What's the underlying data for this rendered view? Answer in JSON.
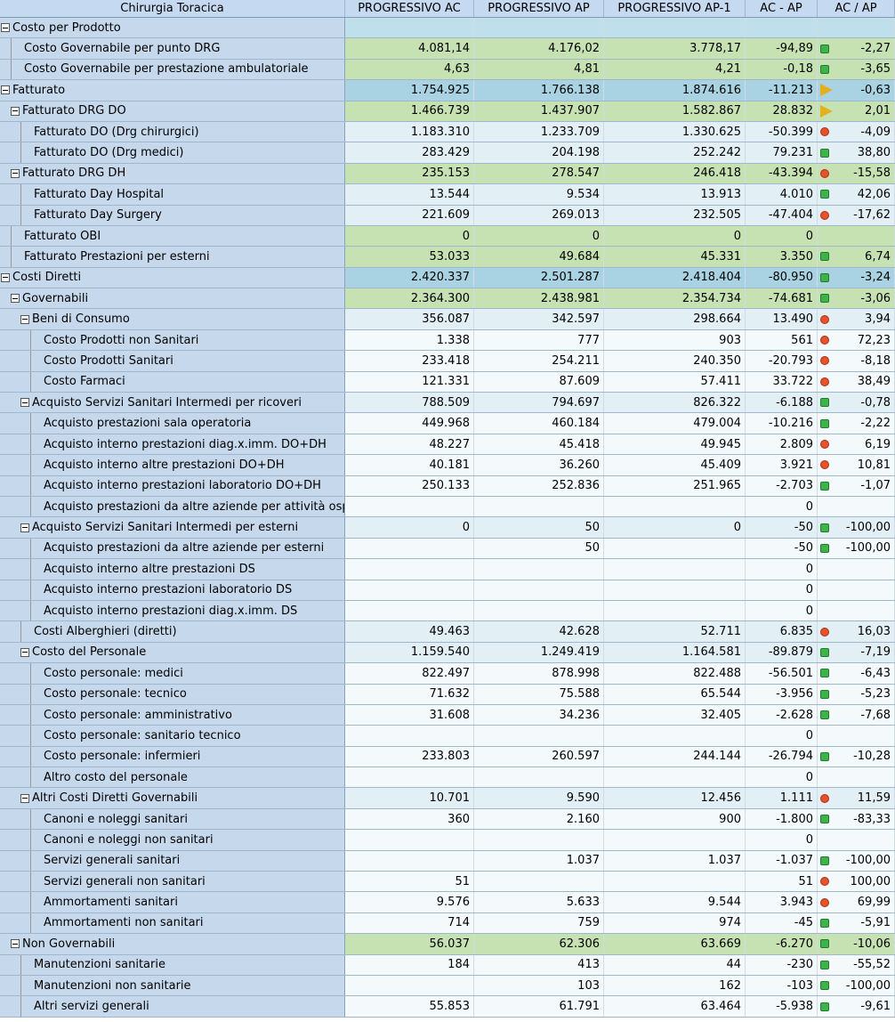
{
  "header": [
    "Chirurgia Toracica",
    "PROGRESSIVO AC",
    "PROGRESSIVO AP",
    "PROGRESSIVO AP-1",
    "AC - AP",
    "AC / AP"
  ],
  "rows": [
    {
      "name": "Costo per Prodotto",
      "values": [
        null,
        null,
        null,
        null,
        null
      ],
      "color": "#bfe0ea",
      "children": [
        {
          "name": "Costo Governabile per punto DRG",
          "values": [
            "4.081,14",
            "4.176,02",
            "3.778,17",
            "-94,89",
            "-2,27"
          ],
          "status": "green",
          "color": "#c6e2b3"
        },
        {
          "name": "Costo Governabile per prestazione ambulatoriale",
          "values": [
            "4,63",
            "4,81",
            "4,21",
            "-0,18",
            "-3,65"
          ],
          "status": "green",
          "color": "#c6e2b3"
        }
      ]
    },
    {
      "name": "Fatturato",
      "values": [
        "1.754.925",
        "1.766.138",
        "1.874.616",
        "-11.213",
        "-0,63"
      ],
      "status": "yellow",
      "color": "#a9d3e2",
      "children": [
        {
          "name": "Fatturato DRG DO",
          "values": [
            "1.466.739",
            "1.437.907",
            "1.582.867",
            "28.832",
            "2,01"
          ],
          "status": "yellow",
          "color": "#c6e2b3",
          "children": [
            {
              "name": "Fatturato DO (Drg chirurgici)",
              "values": [
                "1.183.310",
                "1.233.709",
                "1.330.625",
                "-50.399",
                "-4,09"
              ],
              "status": "red",
              "color": "#e2f0f6"
            },
            {
              "name": "Fatturato DO (Drg medici)",
              "values": [
                "283.429",
                "204.198",
                "252.242",
                "79.231",
                "38,80"
              ],
              "status": "green",
              "color": "#e2f0f6"
            }
          ]
        },
        {
          "name": "Fatturato DRG DH",
          "values": [
            "235.153",
            "278.547",
            "246.418",
            "-43.394",
            "-15,58"
          ],
          "status": "red",
          "color": "#c6e2b3",
          "children": [
            {
              "name": "Fatturato Day Hospital",
              "values": [
                "13.544",
                "9.534",
                "13.913",
                "4.010",
                "42,06"
              ],
              "status": "green",
              "color": "#e2f0f6"
            },
            {
              "name": "Fatturato Day Surgery",
              "values": [
                "221.609",
                "269.013",
                "232.505",
                "-47.404",
                "-17,62"
              ],
              "status": "red",
              "color": "#e2f0f6"
            }
          ]
        },
        {
          "name": "Fatturato OBI",
          "values": [
            "0",
            "0",
            "0",
            "0",
            null
          ],
          "color": "#c6e2b3"
        },
        {
          "name": "Fatturato Prestazioni per esterni",
          "values": [
            "53.033",
            "49.684",
            "45.331",
            "3.350",
            "6,74"
          ],
          "status": "green",
          "color": "#c6e2b3"
        }
      ]
    },
    {
      "name": "Costi Diretti",
      "values": [
        "2.420.337",
        "2.501.287",
        "2.418.404",
        "-80.950",
        "-3,24"
      ],
      "status": "green",
      "color": "#a9d3e2",
      "children": [
        {
          "name": "Governabili",
          "values": [
            "2.364.300",
            "2.438.981",
            "2.354.734",
            "-74.681",
            "-3,06"
          ],
          "status": "green",
          "color": "#c6e2b3",
          "children": [
            {
              "name": "Beni di Consumo",
              "values": [
                "356.087",
                "342.597",
                "298.664",
                "13.490",
                "3,94"
              ],
              "status": "red",
              "color": "#e2f0f6",
              "children": [
                {
                  "name": "Costo Prodotti non Sanitari",
                  "values": [
                    "1.338",
                    "777",
                    "903",
                    "561",
                    "72,23"
                  ],
                  "status": "red",
                  "color": "#f4f9fb"
                },
                {
                  "name": "Costo Prodotti Sanitari",
                  "values": [
                    "233.418",
                    "254.211",
                    "240.350",
                    "-20.793",
                    "-8,18"
                  ],
                  "status": "red",
                  "color": "#f4f9fb"
                },
                {
                  "name": "Costo Farmaci",
                  "values": [
                    "121.331",
                    "87.609",
                    "57.411",
                    "33.722",
                    "38,49"
                  ],
                  "status": "red",
                  "color": "#f4f9fb"
                }
              ]
            },
            {
              "name": "Acquisto Servizi Sanitari Intermedi per ricoveri",
              "values": [
                "788.509",
                "794.697",
                "826.322",
                "-6.188",
                "-0,78"
              ],
              "status": "green",
              "color": "#e2f0f6",
              "children": [
                {
                  "name": "Acquisto prestazioni sala operatoria",
                  "values": [
                    "449.968",
                    "460.184",
                    "479.004",
                    "-10.216",
                    "-2,22"
                  ],
                  "status": "green",
                  "color": "#f4f9fb"
                },
                {
                  "name": "Acquisto interno prestazioni diag.x.imm. DO+DH",
                  "values": [
                    "48.227",
                    "45.418",
                    "49.945",
                    "2.809",
                    "6,19"
                  ],
                  "status": "red",
                  "color": "#f4f9fb"
                },
                {
                  "name": "Acquisto interno altre prestazioni DO+DH",
                  "values": [
                    "40.181",
                    "36.260",
                    "45.409",
                    "3.921",
                    "10,81"
                  ],
                  "status": "red",
                  "color": "#f4f9fb"
                },
                {
                  "name": "Acquisto interno prestazioni laboratorio DO+DH",
                  "values": [
                    "250.133",
                    "252.836",
                    "251.965",
                    "-2.703",
                    "-1,07"
                  ],
                  "status": "green",
                  "color": "#f4f9fb"
                },
                {
                  "name": "Acquisto prestazioni da altre aziende per attività osp.",
                  "values": [
                    null,
                    null,
                    null,
                    "0",
                    null
                  ],
                  "color": "#f4f9fb"
                }
              ]
            },
            {
              "name": "Acquisto Servizi Sanitari Intermedi per esterni",
              "values": [
                "0",
                "50",
                "0",
                "-50",
                "-100,00"
              ],
              "status": "green",
              "color": "#e2f0f6",
              "children": [
                {
                  "name": "Acquisto prestazioni da altre aziende per esterni",
                  "values": [
                    null,
                    "50",
                    null,
                    "-50",
                    "-100,00"
                  ],
                  "status": "green",
                  "color": "#f4f9fb"
                },
                {
                  "name": "Acquisto interno altre prestazioni DS",
                  "values": [
                    null,
                    null,
                    null,
                    "0",
                    null
                  ],
                  "color": "#f4f9fb"
                },
                {
                  "name": "Acquisto interno prestazioni laboratorio DS",
                  "values": [
                    null,
                    null,
                    null,
                    "0",
                    null
                  ],
                  "color": "#f4f9fb"
                },
                {
                  "name": "Acquisto interno prestazioni diag.x.imm. DS",
                  "values": [
                    null,
                    null,
                    null,
                    "0",
                    null
                  ],
                  "color": "#f4f9fb"
                }
              ]
            },
            {
              "name": "Costi Alberghieri (diretti)",
              "values": [
                "49.463",
                "42.628",
                "52.711",
                "6.835",
                "16,03"
              ],
              "status": "red",
              "color": "#e2f0f6"
            },
            {
              "name": "Costo del Personale",
              "values": [
                "1.159.540",
                "1.249.419",
                "1.164.581",
                "-89.879",
                "-7,19"
              ],
              "status": "green",
              "color": "#e2f0f6",
              "children": [
                {
                  "name": "Costo personale: medici",
                  "values": [
                    "822.497",
                    "878.998",
                    "822.488",
                    "-56.501",
                    "-6,43"
                  ],
                  "status": "green",
                  "color": "#f4f9fb"
                },
                {
                  "name": "Costo personale: tecnico",
                  "values": [
                    "71.632",
                    "75.588",
                    "65.544",
                    "-3.956",
                    "-5,23"
                  ],
                  "status": "green",
                  "color": "#f4f9fb"
                },
                {
                  "name": "Costo personale: amministrativo",
                  "values": [
                    "31.608",
                    "34.236",
                    "32.405",
                    "-2.628",
                    "-7,68"
                  ],
                  "status": "green",
                  "color": "#f4f9fb"
                },
                {
                  "name": "Costo personale: sanitario tecnico",
                  "values": [
                    null,
                    null,
                    null,
                    "0",
                    null
                  ],
                  "color": "#f4f9fb"
                },
                {
                  "name": "Costo personale: infermieri",
                  "values": [
                    "233.803",
                    "260.597",
                    "244.144",
                    "-26.794",
                    "-10,28"
                  ],
                  "status": "green",
                  "color": "#f4f9fb"
                },
                {
                  "name": "Altro costo del personale",
                  "values": [
                    null,
                    null,
                    null,
                    "0",
                    null
                  ],
                  "color": "#f4f9fb"
                }
              ]
            },
            {
              "name": "Altri Costi Diretti Governabili",
              "values": [
                "10.701",
                "9.590",
                "12.456",
                "1.111",
                "11,59"
              ],
              "status": "red",
              "color": "#e2f0f6",
              "children": [
                {
                  "name": "Canoni e noleggi sanitari",
                  "values": [
                    "360",
                    "2.160",
                    "900",
                    "-1.800",
                    "-83,33"
                  ],
                  "status": "green",
                  "color": "#f4f9fb"
                },
                {
                  "name": "Canoni e noleggi non sanitari",
                  "values": [
                    null,
                    null,
                    null,
                    "0",
                    null
                  ],
                  "color": "#f4f9fb"
                },
                {
                  "name": "Servizi generali sanitari",
                  "values": [
                    null,
                    "1.037",
                    "1.037",
                    "-1.037",
                    "-100,00"
                  ],
                  "status": "green",
                  "color": "#f4f9fb"
                },
                {
                  "name": "Servizi generali non sanitari",
                  "values": [
                    "51",
                    null,
                    null,
                    "51",
                    "100,00"
                  ],
                  "status": "red",
                  "color": "#f4f9fb"
                },
                {
                  "name": "Ammortamenti sanitari",
                  "values": [
                    "9.576",
                    "5.633",
                    "9.544",
                    "3.943",
                    "69,99"
                  ],
                  "status": "red",
                  "color": "#f4f9fb"
                },
                {
                  "name": "Ammortamenti non sanitari",
                  "values": [
                    "714",
                    "759",
                    "974",
                    "-45",
                    "-5,91"
                  ],
                  "status": "green",
                  "color": "#f4f9fb"
                }
              ]
            }
          ]
        },
        {
          "name": "Non Governabili",
          "values": [
            "56.037",
            "62.306",
            "63.669",
            "-6.270",
            "-10,06"
          ],
          "status": "green",
          "color": "#c6e2b3",
          "children": [
            {
              "name": "Manutenzioni sanitarie",
              "values": [
                "184",
                "413",
                "44",
                "-230",
                "-55,52"
              ],
              "status": "green",
              "color": "#f4f9fb"
            },
            {
              "name": "Manutenzioni non sanitarie",
              "values": [
                null,
                "103",
                "162",
                "-103",
                "-100,00"
              ],
              "status": "green",
              "color": "#f4f9fb"
            },
            {
              "name": "Altri servizi generali",
              "values": [
                "55.853",
                "61.791",
                "63.464",
                "-5.938",
                "-9,61"
              ],
              "status": "green",
              "color": "#f4f9fb"
            }
          ]
        }
      ]
    }
  ]
}
